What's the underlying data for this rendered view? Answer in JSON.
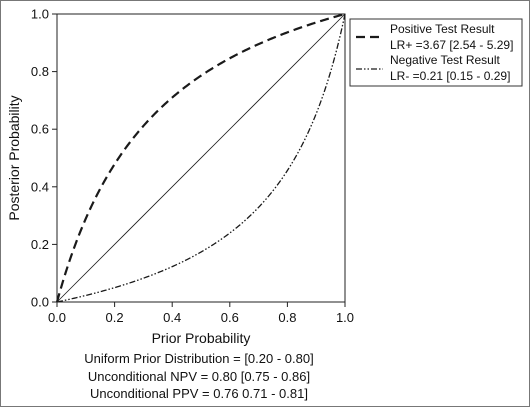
{
  "chart_data": {
    "type": "line",
    "xlabel": "Prior Probability",
    "ylabel": "Posterior Probability",
    "xlim": [
      0,
      1
    ],
    "ylim": [
      0,
      1
    ],
    "x_ticks": [
      "0.0",
      "0.2",
      "0.4",
      "0.6",
      "0.8",
      "1.0"
    ],
    "y_ticks": [
      "0.0",
      "0.2",
      "0.4",
      "0.6",
      "0.8",
      "1.0"
    ],
    "grid": false,
    "legend_position": "top-right",
    "series": [
      {
        "name": "Positive Test Result",
        "detail": "LR+ =3.67 [2.54 - 5.29]",
        "line_style": "dashed",
        "likelihood_ratio": 3.67
      },
      {
        "name": "Negative Test Result",
        "detail": "LR- =0.21 [0.15 - 0.29]",
        "line_style": "dash-dot",
        "likelihood_ratio": 0.21
      }
    ],
    "reference_line": {
      "style": "solid",
      "from": [
        0,
        0
      ],
      "to": [
        1,
        1
      ]
    },
    "annotations": [
      "Uniform Prior Distribution = [0.20 - 0.80]",
      "Unconditional NPV = 0.80 [0.75 - 0.86]",
      "Unconditional PPV = 0.76 0.71 - 0.81]"
    ],
    "line_color": "#1a1a1a"
  }
}
